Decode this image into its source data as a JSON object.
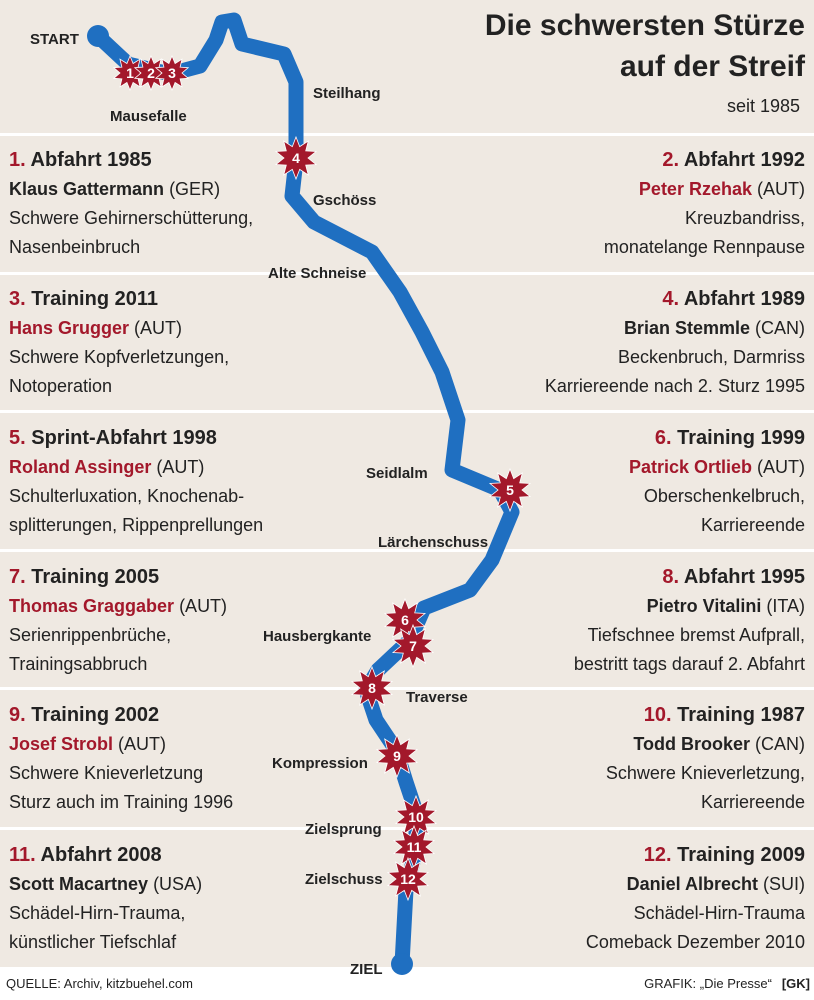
{
  "header": {
    "title_lines": [
      "Die schwersten Stürze",
      "auf der Streif"
    ],
    "subtitle": "seit 1985"
  },
  "route_labels": [
    "START",
    "Mausefalle",
    "Steilhang",
    "Gschöss",
    "Alte Schneise",
    "Seidlalm",
    "Lärchenschuss",
    "Hausbergkante",
    "Traverse",
    "Kompression",
    "Zielsprung",
    "Zielschuss",
    "ZIEL"
  ],
  "markers": [
    "1",
    "2",
    "3",
    "4",
    "5",
    "6",
    "7",
    "8",
    "9",
    "10",
    "11",
    "12"
  ],
  "entries": [
    {
      "number": "1.",
      "event": "Abfahrt 1985",
      "name": "Klaus Gattermann",
      "country": "(GER)",
      "name_color": "#222222",
      "details": [
        "Schwere Gehirnerschütterung,",
        "Nasenbeinbruch"
      ]
    },
    {
      "number": "2.",
      "event": "Abfahrt 1992",
      "name": "Peter Rzehak",
      "country": "(AUT)",
      "name_color": "#a3182b",
      "details": [
        "Kreuzbandriss,",
        "monatelange Rennpause"
      ]
    },
    {
      "number": "3.",
      "event": "Training 2011",
      "name": "Hans Grugger",
      "country": "(AUT)",
      "name_color": "#a3182b",
      "details": [
        "Schwere Kopfverletzungen,",
        "Notoperation"
      ]
    },
    {
      "number": "4.",
      "event": "Abfahrt 1989",
      "name": "Brian Stemmle",
      "country": "(CAN)",
      "name_color": "#222222",
      "details": [
        "Beckenbruch, Darmriss",
        "Karriereende nach 2. Sturz 1995"
      ]
    },
    {
      "number": "5.",
      "event": "Sprint-Abfahrt 1998",
      "name": "Roland Assinger",
      "country": "(AUT)",
      "name_color": "#a3182b",
      "details": [
        "Schulterluxation, Knochenab-",
        "splitterungen, Rippenprellungen"
      ]
    },
    {
      "number": "6.",
      "event": "Training 1999",
      "name": "Patrick Ortlieb",
      "country": "(AUT)",
      "name_color": "#a3182b",
      "details": [
        "Oberschenkelbruch,",
        "Karriereende"
      ]
    },
    {
      "number": "7.",
      "event": "Training 2005",
      "name": "Thomas Graggaber",
      "country": "(AUT)",
      "name_color": "#a3182b",
      "details": [
        "Serienrippenbrüche,",
        "Trainingsabbruch"
      ]
    },
    {
      "number": "8.",
      "event": "Abfahrt 1995",
      "name": "Pietro Vitalini",
      "country": "(ITA)",
      "name_color": "#222222",
      "details": [
        "Tiefschnee bremst Aufprall,",
        "bestritt tags darauf 2. Abfahrt"
      ]
    },
    {
      "number": "9.",
      "event": "Training 2002",
      "name": "Josef Strobl",
      "country": "(AUT)",
      "name_color": "#a3182b",
      "details": [
        "Schwere Knieverletzung",
        "Sturz auch im Training 1996"
      ]
    },
    {
      "number": "10.",
      "event": "Training 1987",
      "name": "Todd Brooker",
      "country": "(CAN)",
      "name_color": "#222222",
      "details": [
        "Schwere Knieverletzung,",
        "Karriereende"
      ]
    },
    {
      "number": "11.",
      "event": "Abfahrt 2008",
      "name": "Scott Macartney",
      "country": "(USA)",
      "name_color": "#222222",
      "details": [
        "Schädel-Hirn-Trauma,",
        "künstlicher Tiefschlaf"
      ]
    },
    {
      "number": "12.",
      "event": "Training 2009",
      "name": "Daniel Albrecht",
      "country": "(SUI)",
      "name_color": "#222222",
      "details": [
        "Schädel-Hirn-Trauma",
        "Comeback Dezember 2010"
      ]
    }
  ],
  "footer": {
    "source": "QUELLE: Archiv, kitzbuehel.com",
    "credit": "GRAFIK: „Die Presse“",
    "credit_tag": "[GK]"
  }
}
